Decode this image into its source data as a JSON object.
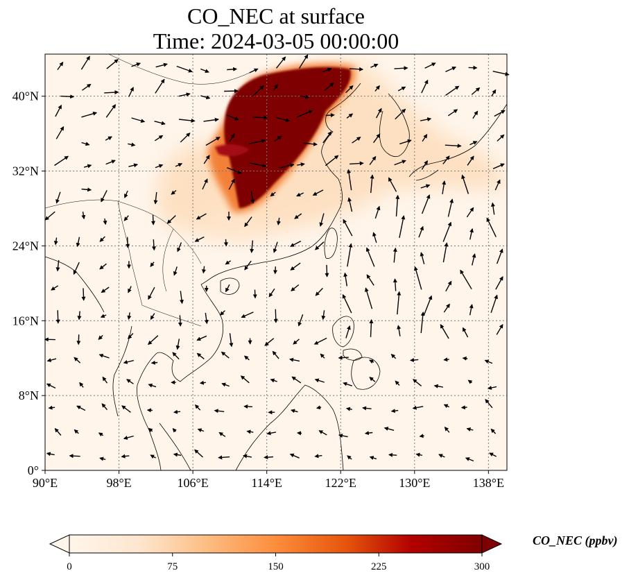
{
  "title": {
    "line1": "CO_NEC at surface",
    "line2": "Time: 2024-03-05 00:00:00"
  },
  "map": {
    "lon_range": [
      90,
      140
    ],
    "lat_range": [
      0,
      44.5
    ],
    "lon_ticks": [
      {
        "value": 90,
        "label": "90°E"
      },
      {
        "value": 98,
        "label": "98°E"
      },
      {
        "value": 106,
        "label": "106°E"
      },
      {
        "value": 114,
        "label": "114°E"
      },
      {
        "value": 122,
        "label": "122°E"
      },
      {
        "value": 130,
        "label": "130°E"
      },
      {
        "value": 138,
        "label": "138°E"
      }
    ],
    "lat_ticks": [
      {
        "value": 0,
        "label": "0°"
      },
      {
        "value": 8,
        "label": "8°N"
      },
      {
        "value": 16,
        "label": "16°N"
      },
      {
        "value": 24,
        "label": "24°N"
      },
      {
        "value": 32,
        "label": "32°N"
      },
      {
        "value": 40,
        "label": "40°N"
      }
    ],
    "gridlines": true,
    "background_color": "#fff5eb",
    "plume_colors": [
      "#fdd9b4",
      "#f16913",
      "#7f0000"
    ]
  },
  "colorbar": {
    "label": "CO_NEC (ppbv)",
    "ticks": [
      "0",
      "75",
      "150",
      "225",
      "300"
    ],
    "range": [
      0,
      300
    ],
    "colormap": [
      "#fff5eb",
      "#fdd9b4",
      "#fda762",
      "#f16913",
      "#d94801",
      "#a50f15",
      "#7f0000"
    ],
    "extend": "both"
  }
}
